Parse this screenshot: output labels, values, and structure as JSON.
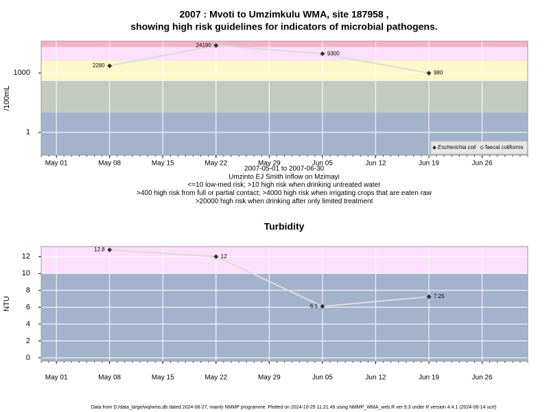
{
  "chart_data": [
    {
      "type": "line",
      "title": [
        "2007 : Mvoti to Umzimkulu WMA, site 187958 ,",
        "showing high risk guidelines for indicators of microbial pathogens."
      ],
      "ylabel": "/100mL",
      "log_scale": true,
      "x": [
        "May 08",
        "May 22",
        "Jun 05",
        "Jun 19"
      ],
      "xlim": [
        "Apr 29",
        "Jul 02"
      ],
      "xticks": [
        "May 01",
        "May 08",
        "May 15",
        "May 22",
        "May 29",
        "Jun 05",
        "Jun 12",
        "Jun 19",
        "Jun 26"
      ],
      "ylim": [
        0.07,
        40000
      ],
      "yticks": [
        1,
        1000
      ],
      "grid": true,
      "thresholds": [
        10,
        400,
        4000,
        20000
      ],
      "band_colors": [
        "#a3b3cc",
        "#c3cbc0",
        "#fdf8c8",
        "#fde0fb",
        "#f8b4c4"
      ],
      "line_color": "#dcdcdc",
      "legend": "lower right",
      "series": [
        {
          "name": "Escherichia coli",
          "color": "#333333",
          "values": [
            2280,
            24190,
            9300,
            980
          ]
        },
        {
          "name": "faecal coliforms",
          "color": "#333333",
          "values": [
            null,
            null,
            null,
            null
          ]
        }
      ],
      "notes": [
        "2007-05-01 to 2007-06-30",
        "Umzinto EJ Smith Inflow on Mzimayi",
        "<=10 low-med risk; >10 high risk when drinking untreated water",
        ">400 high risk from full or partial contact; >4000 high risk when irrigating crops that are eaten raw",
        ">20000 high risk when drinking after only limited treatment"
      ]
    },
    {
      "type": "line",
      "title": [
        "Turbidity"
      ],
      "ylabel": "NTU",
      "log_scale": false,
      "x": [
        "May 08",
        "May 22",
        "Jun 05",
        "Jun 19"
      ],
      "xlim": [
        "Apr 29",
        "Jul 02"
      ],
      "xticks": [
        "May 01",
        "May 08",
        "May 15",
        "May 22",
        "May 29",
        "Jun 05",
        "Jun 12",
        "Jun 19",
        "Jun 26"
      ],
      "ylim": [
        -0.4,
        13.2
      ],
      "yticks": [
        0,
        2,
        4,
        6,
        8,
        10,
        12
      ],
      "grid": true,
      "thresholds": [
        10
      ],
      "band_colors": [
        "#a3b3cc",
        "#fde0fb"
      ],
      "line_color": "#dcdcdc",
      "series": [
        {
          "name": "Turbidity",
          "color": "#333333",
          "values": [
            12.8,
            12,
            6.1,
            7.25
          ]
        }
      ]
    }
  ],
  "footer": "Data from D:/data_large/wq/wms.db dated 2024-08-27, mainly NMMP programme. Plotted on 2024-10-25 11:21:49 using NMMP_WMA_web.R ver 9.3 under R version 4.4.1 (2024-06-14 ucrt)"
}
